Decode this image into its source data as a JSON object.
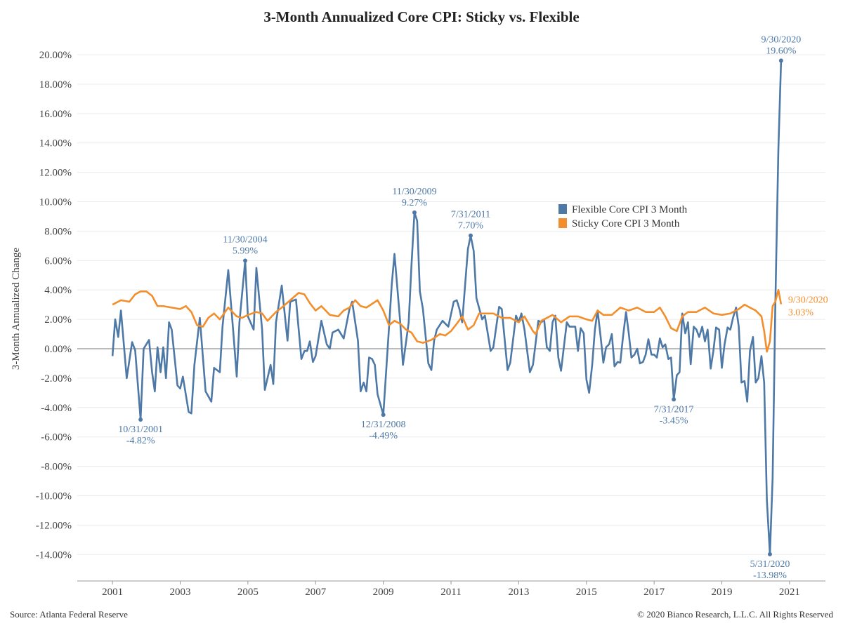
{
  "chart_data": {
    "type": "line",
    "title": "3-Month Annualized Core CPI: Sticky vs. Flexible",
    "y_axis_label": "3-Month Annualized Change",
    "source": "Source: Atlanta Federal Reserve",
    "copyright": "© 2020 Bianco Research, L.L.C. All Rights Reserved",
    "xlim": [
      1999.96,
      2022.06
    ],
    "xticks": [
      2001,
      2003,
      2005,
      2007,
      2009,
      2011,
      2013,
      2015,
      2017,
      2019,
      2021
    ],
    "ylim": [
      -15.8,
      21.1
    ],
    "yticks": [
      {
        "value": -14,
        "label": "-14.00%"
      },
      {
        "value": -12,
        "label": "-12.00%"
      },
      {
        "value": -10,
        "label": "-10.00%"
      },
      {
        "value": -8,
        "label": "-8.00%"
      },
      {
        "value": -6,
        "label": "-6.00%"
      },
      {
        "value": -4,
        "label": "-4.00%"
      },
      {
        "value": -2,
        "label": "-2.00%"
      },
      {
        "value": 0,
        "label": "0.00%"
      },
      {
        "value": 2,
        "label": "2.00%"
      },
      {
        "value": 4,
        "label": "4.00%"
      },
      {
        "value": 6,
        "label": "6.00%"
      },
      {
        "value": 8,
        "label": "8.00%"
      },
      {
        "value": 10,
        "label": "10.00%"
      },
      {
        "value": 12,
        "label": "12.00%"
      },
      {
        "value": 14,
        "label": "14.00%"
      },
      {
        "value": 16,
        "label": "16.00%"
      },
      {
        "value": 18,
        "label": "18.00%"
      },
      {
        "value": 20,
        "label": "20.00%"
      }
    ],
    "grid": true,
    "legend": "upper-center",
    "series": [
      {
        "name": "Flexible Core CPI 3 Month",
        "color": "#4e79a7",
        "x": [
          2001.0,
          2001.08,
          2001.17,
          2001.25,
          2001.42,
          2001.58,
          2001.67,
          2001.83,
          2001.92,
          2002.08,
          2002.17,
          2002.25,
          2002.33,
          2002.42,
          2002.5,
          2002.58,
          2002.67,
          2002.75,
          2002.92,
          2003.0,
          2003.08,
          2003.25,
          2003.33,
          2003.42,
          2003.58,
          2003.75,
          2003.92,
          2004.0,
          2004.17,
          2004.25,
          2004.42,
          2004.58,
          2004.67,
          2004.75,
          2004.92,
          2005.0,
          2005.17,
          2005.25,
          2005.42,
          2005.5,
          2005.67,
          2005.75,
          2005.83,
          2006.0,
          2006.17,
          2006.25,
          2006.42,
          2006.58,
          2006.67,
          2006.75,
          2006.83,
          2006.92,
          2007.0,
          2007.17,
          2007.33,
          2007.42,
          2007.5,
          2007.67,
          2007.83,
          2008.0,
          2008.08,
          2008.25,
          2008.33,
          2008.42,
          2008.5,
          2008.58,
          2008.67,
          2008.75,
          2008.83,
          2009.0,
          2009.17,
          2009.25,
          2009.33,
          2009.5,
          2009.58,
          2009.75,
          2009.83,
          2009.92,
          2010.0,
          2010.08,
          2010.17,
          2010.33,
          2010.42,
          2010.5,
          2010.58,
          2010.75,
          2010.92,
          2011.08,
          2011.17,
          2011.25,
          2011.33,
          2011.5,
          2011.58,
          2011.67,
          2011.75,
          2011.92,
          2012.0,
          2012.17,
          2012.25,
          2012.42,
          2012.5,
          2012.67,
          2012.75,
          2012.92,
          2013.0,
          2013.08,
          2013.17,
          2013.33,
          2013.42,
          2013.58,
          2013.67,
          2013.75,
          2013.83,
          2013.92,
          2014.0,
          2014.08,
          2014.17,
          2014.25,
          2014.42,
          2014.5,
          2014.67,
          2014.75,
          2014.83,
          2014.92,
          2015.0,
          2015.08,
          2015.17,
          2015.25,
          2015.33,
          2015.42,
          2015.5,
          2015.58,
          2015.67,
          2015.75,
          2015.83,
          2015.92,
          2016.0,
          2016.08,
          2016.17,
          2016.25,
          2016.33,
          2016.42,
          2016.5,
          2016.58,
          2016.67,
          2016.75,
          2016.83,
          2016.92,
          2017.0,
          2017.08,
          2017.17,
          2017.25,
          2017.33,
          2017.42,
          2017.5,
          2017.58,
          2017.67,
          2017.75,
          2017.83,
          2017.92,
          2018.0,
          2018.08,
          2018.17,
          2018.25,
          2018.33,
          2018.42,
          2018.5,
          2018.58,
          2018.67,
          2018.75,
          2018.83,
          2018.92,
          2019.0,
          2019.08,
          2019.17,
          2019.25,
          2019.33,
          2019.42,
          2019.5,
          2019.58,
          2019.67,
          2019.75,
          2019.83,
          2019.92,
          2020.0,
          2020.08,
          2020.17,
          2020.25,
          2020.33,
          2020.42,
          2020.5,
          2020.58,
          2020.67,
          2020.75
        ],
        "values": [
          -0.5,
          2.0,
          0.8,
          2.6,
          -2.0,
          0.45,
          -0.1,
          -4.82,
          0,
          0.6,
          -1.6,
          -2.9,
          0.1,
          -1.6,
          0.1,
          -2.0,
          1.8,
          1.3,
          -2.5,
          -2.7,
          -1.9,
          -4.3,
          -4.4,
          -1.1,
          2.1,
          -2.9,
          -3.6,
          -1.3,
          -1.6,
          1.5,
          5.35,
          0.8,
          -1.9,
          1.8,
          5.99,
          2.2,
          1.3,
          5.5,
          1.3,
          -2.8,
          -1.1,
          -2.4,
          1.8,
          4.3,
          0.55,
          3.2,
          3.35,
          -0.7,
          -0.15,
          -0.15,
          0.5,
          -0.9,
          -0.5,
          1.9,
          0.3,
          0,
          1.1,
          1.3,
          0.7,
          2.7,
          3.2,
          0.55,
          -2.9,
          -2.3,
          -2.9,
          -0.6,
          -0.7,
          -1.1,
          -3.1,
          -4.49,
          1.5,
          4.4,
          6.45,
          1.8,
          -1.1,
          1.8,
          5.6,
          9.27,
          8.7,
          3.9,
          2.7,
          -1.0,
          -1.45,
          0.55,
          1.3,
          1.9,
          1.5,
          3.2,
          3.3,
          2.7,
          1.8,
          6.8,
          7.7,
          6.65,
          3.45,
          2.0,
          2.25,
          -0.15,
          0.1,
          2.85,
          2.7,
          -1.45,
          -0.95,
          2.25,
          1.8,
          2.4,
          1.3,
          -1.6,
          -1.1,
          1.9,
          1.8,
          2.0,
          0.1,
          -0.15,
          1.8,
          2.25,
          -0.6,
          -1.5,
          1.8,
          1.5,
          1.5,
          -0.15,
          1.4,
          1.05,
          -2.1,
          -3.0,
          -1.1,
          1.3,
          2.6,
          0.8,
          -0.95,
          0.1,
          0.3,
          1.0,
          -1.2,
          -0.9,
          -0.95,
          0.8,
          2.5,
          1.05,
          -0.6,
          -0.4,
          0,
          -1.0,
          -0.9,
          -0.4,
          0.65,
          -0.4,
          -0.4,
          -0.6,
          0.7,
          0.1,
          0.3,
          -0.7,
          -0.6,
          -3.45,
          -1.8,
          -1.6,
          2.4,
          1.05,
          1.8,
          -1.05,
          1.5,
          1.3,
          0.8,
          1.5,
          0.5,
          1.3,
          -1.35,
          -0.15,
          1.45,
          1.3,
          -1.3,
          0.3,
          1.45,
          1.3,
          2.1,
          2.8,
          1.5,
          -2.3,
          -2.2,
          -3.6,
          -0.15,
          0.8,
          -2.3,
          -2.0,
          -0.5,
          -2.3,
          -10.3,
          -13.98,
          -8.8,
          3.0,
          13.6,
          19.6
        ],
        "annotations": [
          {
            "date": "10/31/2001",
            "label": "-4.82%"
          },
          {
            "date": "11/30/2004",
            "label": "5.99%"
          },
          {
            "date": "12/31/2008",
            "label": "-4.49%"
          },
          {
            "date": "11/30/2009",
            "label": "9.27%"
          },
          {
            "date": "7/31/2011",
            "label": "7.70%"
          },
          {
            "date": "7/31/2017",
            "label": "-3.45%"
          },
          {
            "date": "5/31/2020",
            "label": "-13.98%"
          },
          {
            "date": "9/30/2020",
            "label": "19.60%"
          }
        ]
      },
      {
        "name": "Sticky Core CPI 3 Month",
        "color": "#f28e2b",
        "x": [
          2001.0,
          2001.25,
          2001.5,
          2001.67,
          2001.83,
          2002.0,
          2002.17,
          2002.33,
          2002.5,
          2002.75,
          2003.0,
          2003.17,
          2003.33,
          2003.5,
          2003.67,
          2003.83,
          2004.0,
          2004.17,
          2004.42,
          2004.67,
          2004.83,
          2005.0,
          2005.25,
          2005.42,
          2005.58,
          2005.83,
          2006.0,
          2006.25,
          2006.5,
          2006.67,
          2006.83,
          2007.0,
          2007.17,
          2007.42,
          2007.67,
          2007.83,
          2008.0,
          2008.17,
          2008.33,
          2008.5,
          2008.83,
          2009.0,
          2009.17,
          2009.33,
          2009.5,
          2009.67,
          2009.83,
          2010.0,
          2010.17,
          2010.42,
          2010.67,
          2010.83,
          2011.0,
          2011.17,
          2011.33,
          2011.5,
          2011.67,
          2011.83,
          2012.0,
          2012.25,
          2012.5,
          2012.75,
          2013.0,
          2013.17,
          2013.42,
          2013.5,
          2013.67,
          2014.0,
          2014.25,
          2014.5,
          2014.75,
          2015.0,
          2015.17,
          2015.33,
          2015.5,
          2015.75,
          2016.0,
          2016.25,
          2016.5,
          2016.75,
          2017.0,
          2017.17,
          2017.33,
          2017.5,
          2017.67,
          2017.83,
          2018.0,
          2018.25,
          2018.5,
          2018.75,
          2019.0,
          2019.25,
          2019.5,
          2019.67,
          2019.83,
          2020.0,
          2020.17,
          2020.25,
          2020.33,
          2020.42,
          2020.5,
          2020.58,
          2020.67,
          2020.75
        ],
        "values": [
          3.0,
          3.3,
          3.2,
          3.7,
          3.9,
          3.9,
          3.6,
          2.9,
          2.9,
          2.8,
          2.7,
          2.9,
          2.5,
          1.6,
          1.5,
          2.1,
          2.4,
          2.0,
          2.8,
          2.2,
          2.1,
          2.3,
          2.5,
          2.4,
          1.9,
          2.5,
          2.8,
          3.3,
          3.8,
          3.7,
          3.1,
          2.6,
          2.9,
          2.3,
          2.2,
          2.6,
          2.8,
          3.3,
          2.9,
          2.8,
          3.3,
          2.6,
          1.6,
          1.9,
          1.7,
          1.3,
          1.1,
          0.5,
          0.4,
          0.6,
          1.0,
          0.9,
          1.2,
          1.7,
          2.2,
          1.3,
          1.6,
          2.4,
          2.4,
          2.4,
          2.1,
          2.1,
          1.8,
          2.2,
          1.2,
          1.0,
          1.9,
          2.3,
          1.8,
          2.2,
          2.2,
          2.0,
          1.9,
          2.6,
          2.3,
          2.3,
          2.8,
          2.6,
          2.8,
          2.5,
          2.5,
          2.8,
          2.2,
          1.4,
          1.2,
          2.2,
          2.5,
          2.5,
          2.8,
          2.4,
          2.3,
          2.4,
          2.7,
          3.0,
          2.8,
          2.6,
          2.2,
          1.2,
          -0.2,
          0.5,
          2.9,
          3.2,
          4.0,
          3.03
        ],
        "annotations": [
          {
            "date": "9/30/2020",
            "label": "3.03%"
          }
        ]
      }
    ]
  }
}
